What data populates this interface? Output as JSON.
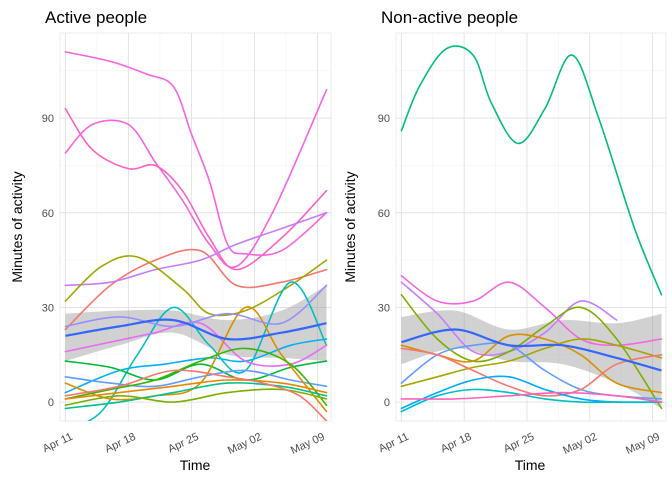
{
  "chart_data": [
    {
      "type": "line",
      "title": "Active people",
      "xlabel": "Time",
      "ylabel": "Minutes of activity",
      "x_ticks": [
        "Apr 11",
        "Apr 18",
        "Apr 25",
        "May 02",
        "May 09"
      ],
      "y_ticks": [
        0,
        30,
        60,
        90
      ],
      "xlim": [
        -0.6,
        29.5
      ],
      "ylim": [
        -6,
        117
      ],
      "grid": true,
      "legend": "none",
      "trend": {
        "color": "#3366FF",
        "band_color": "#999999",
        "x": [
          0,
          6,
          12,
          18,
          24,
          29
        ],
        "y": [
          21,
          24,
          26,
          20,
          22,
          25
        ],
        "lower": [
          13,
          18,
          22,
          15,
          14,
          13
        ],
        "upper": [
          28,
          29,
          29,
          26,
          29,
          37
        ]
      },
      "series": [
        {
          "color": "#F564E3",
          "x": [
            0,
            5,
            9,
            12,
            14,
            16,
            18,
            20,
            24,
            29
          ],
          "y": [
            111,
            108,
            104,
            100,
            85,
            70,
            50,
            47,
            48,
            60
          ]
        },
        {
          "color": "#F564E3",
          "x": [
            0,
            3,
            7,
            10,
            13,
            16,
            19,
            23,
            29
          ],
          "y": [
            79,
            88,
            88,
            76,
            64,
            50,
            43,
            60,
            99
          ]
        },
        {
          "color": "#FF61C3",
          "x": [
            0,
            3,
            7,
            10,
            13,
            16,
            19,
            24,
            29
          ],
          "y": [
            93,
            80,
            74,
            75,
            67,
            52,
            42,
            52,
            67
          ]
        },
        {
          "color": "#F8766D",
          "x": [
            0,
            5,
            10,
            15,
            19,
            24,
            29
          ],
          "y": [
            23,
            37,
            45,
            48,
            37,
            38,
            42
          ]
        },
        {
          "color": "#C77CFF",
          "x": [
            0,
            5,
            10,
            15,
            19,
            24,
            29
          ],
          "y": [
            37,
            38,
            42,
            45,
            50,
            55,
            60
          ]
        },
        {
          "color": "#A3A500",
          "x": [
            0,
            4,
            8,
            13,
            16,
            20,
            25,
            29
          ],
          "y": [
            32,
            43,
            46,
            36,
            28,
            29,
            37,
            45
          ]
        },
        {
          "color": "#00B0F6",
          "x": [
            0,
            6,
            11,
            16,
            20,
            25,
            29
          ],
          "y": [
            3,
            10,
            12,
            14,
            13,
            18,
            20
          ]
        },
        {
          "color": "#00BFC4",
          "x": [
            0,
            4,
            8,
            12,
            16,
            20,
            25,
            29
          ],
          "y": [
            -9,
            -3,
            15,
            30,
            18,
            10,
            38,
            18
          ]
        },
        {
          "color": "#E76BF3",
          "x": [
            0,
            5,
            10,
            15,
            20,
            25,
            29
          ],
          "y": [
            16,
            19,
            22,
            25,
            13,
            12,
            18
          ]
        },
        {
          "color": "#00BA38",
          "x": [
            0,
            5,
            10,
            15,
            20,
            25,
            29
          ],
          "y": [
            13,
            11,
            7,
            12,
            7,
            11,
            13
          ]
        },
        {
          "color": "#619CFF",
          "x": [
            0,
            5,
            10,
            15,
            20,
            25,
            29
          ],
          "y": [
            8,
            6,
            5,
            8,
            10,
            7,
            5
          ]
        },
        {
          "color": "#D89000",
          "x": [
            0,
            5,
            10,
            15,
            20,
            24,
            29
          ],
          "y": [
            6,
            1,
            2,
            6,
            30,
            15,
            -3
          ]
        },
        {
          "color": "#39B600",
          "x": [
            0,
            5,
            10,
            15,
            20,
            25,
            29
          ],
          "y": [
            1,
            4,
            7,
            13,
            17,
            12,
            -1
          ]
        },
        {
          "color": "#00C08B",
          "x": [
            0,
            6,
            12,
            18,
            24,
            29
          ],
          "y": [
            -2,
            0,
            3,
            6,
            5,
            2
          ]
        },
        {
          "color": "#E58700",
          "x": [
            0,
            6,
            12,
            18,
            24,
            29
          ],
          "y": [
            1,
            3,
            5,
            7,
            6,
            3
          ]
        },
        {
          "color": "#9590FF",
          "x": [
            0,
            6,
            12,
            18,
            24,
            29
          ],
          "y": [
            24,
            27,
            24,
            28,
            25,
            37
          ]
        },
        {
          "color": "#7CAE00",
          "x": [
            0,
            6,
            12,
            18,
            24,
            29
          ],
          "y": [
            -1,
            2,
            0,
            3,
            4,
            1
          ]
        },
        {
          "color": "#F8766D",
          "x": [
            0,
            6,
            12,
            18,
            22,
            26,
            29
          ],
          "y": [
            2,
            5,
            10,
            8,
            6,
            2,
            -6
          ]
        }
      ]
    },
    {
      "type": "line",
      "title": "Non-active people",
      "xlabel": "Time",
      "ylabel": "Minutes of activity",
      "x_ticks": [
        "Apr 11",
        "Apr 18",
        "Apr 25",
        "May 02",
        "May 09"
      ],
      "y_ticks": [
        0,
        30,
        60,
        90
      ],
      "xlim": [
        -0.6,
        29.5
      ],
      "ylim": [
        -6,
        117
      ],
      "grid": true,
      "legend": "none",
      "trend": {
        "color": "#3366FF",
        "band_color": "#999999",
        "x": [
          0,
          6,
          12,
          18,
          24,
          29
        ],
        "y": [
          19,
          23,
          18,
          18,
          14,
          10
        ],
        "lower": [
          12,
          17,
          13,
          12,
          6,
          -2
        ],
        "upper": [
          27,
          29,
          23,
          26,
          25,
          28
        ]
      },
      "series": [
        {
          "color": "#00BF7D",
          "x": [
            0,
            2,
            5,
            8,
            10,
            13,
            16,
            19,
            22,
            26,
            29
          ],
          "y": [
            86,
            100,
            112,
            110,
            95,
            82,
            93,
            110,
            90,
            55,
            34
          ]
        },
        {
          "color": "#F564E3",
          "x": [
            0,
            4,
            8,
            12,
            16,
            20,
            24,
            29
          ],
          "y": [
            40,
            32,
            32,
            38,
            30,
            20,
            18,
            20
          ]
        },
        {
          "color": "#C77CFF",
          "x": [
            0,
            4,
            8,
            12,
            16,
            20,
            24
          ],
          "y": [
            38,
            28,
            16,
            16,
            22,
            32,
            26
          ]
        },
        {
          "color": "#7CAE00",
          "x": [
            0,
            4,
            8,
            12,
            16,
            20,
            24,
            29
          ],
          "y": [
            34,
            20,
            13,
            16,
            24,
            30,
            20,
            -2
          ]
        },
        {
          "color": "#A3A500",
          "x": [
            0,
            4,
            8,
            12,
            16,
            20,
            24,
            29
          ],
          "y": [
            5,
            8,
            11,
            13,
            17,
            20,
            18,
            14
          ]
        },
        {
          "color": "#619CFF",
          "x": [
            0,
            4,
            8,
            12,
            16,
            20,
            24,
            29
          ],
          "y": [
            6,
            15,
            18,
            18,
            10,
            4,
            2,
            1
          ]
        },
        {
          "color": "#D89000",
          "x": [
            0,
            4,
            8,
            12,
            16,
            20,
            24,
            29
          ],
          "y": [
            18,
            15,
            13,
            21,
            20,
            15,
            6,
            3
          ]
        },
        {
          "color": "#F8766D",
          "x": [
            0,
            4,
            8,
            12,
            16,
            20,
            24,
            29
          ],
          "y": [
            17,
            15,
            10,
            5,
            2,
            4,
            12,
            15
          ]
        },
        {
          "color": "#00A9FF",
          "x": [
            0,
            4,
            8,
            12,
            16,
            20,
            24,
            29
          ],
          "y": [
            -2,
            3,
            7,
            8,
            4,
            1,
            0,
            0
          ]
        },
        {
          "color": "#00BFC4",
          "x": [
            0,
            4,
            8,
            12,
            16,
            20,
            24,
            29
          ],
          "y": [
            -3,
            2,
            4,
            3,
            1,
            0,
            0,
            0
          ]
        },
        {
          "color": "#FF62BC",
          "x": [
            0,
            6,
            12,
            18,
            24,
            29
          ],
          "y": [
            1,
            1,
            2,
            3,
            2,
            0
          ]
        }
      ]
    }
  ]
}
